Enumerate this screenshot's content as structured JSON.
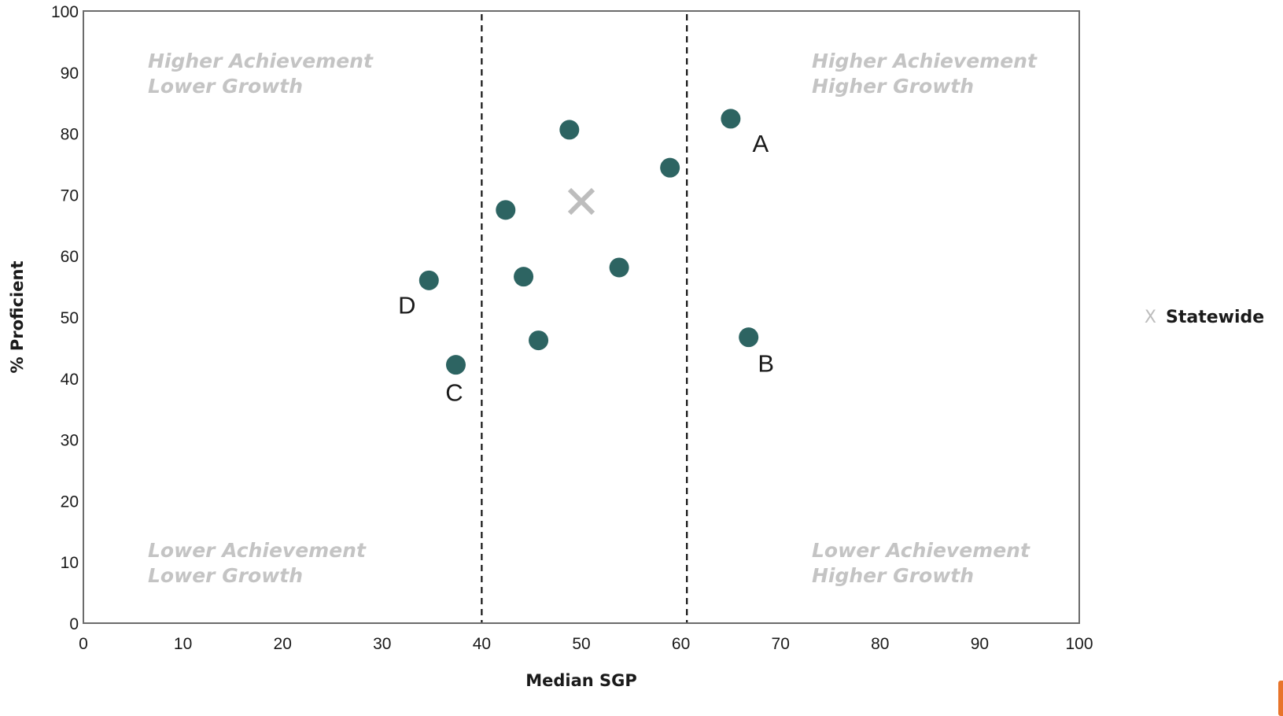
{
  "chart_data": {
    "type": "scatter",
    "title": "",
    "xlabel": "Median SGP",
    "ylabel": "% Proficient",
    "xlim": [
      0,
      100
    ],
    "ylim": [
      0,
      100
    ],
    "x_ticks": [
      0,
      10,
      20,
      30,
      40,
      50,
      60,
      70,
      80,
      90,
      100
    ],
    "y_ticks": [
      0,
      10,
      20,
      30,
      40,
      50,
      60,
      70,
      80,
      90,
      100
    ],
    "grid": false,
    "reference_lines_x": [
      40,
      60.6
    ],
    "reference_line_style": "dashed",
    "quadrants": [
      {
        "line1": "Higher Achievement",
        "line2": "Lower Growth",
        "position": "top-left"
      },
      {
        "line1": "Higher Achievement",
        "line2": "Higher Growth",
        "position": "top-right"
      },
      {
        "line1": "Lower Achievement",
        "line2": "Lower Growth",
        "position": "bottom-left"
      },
      {
        "line1": "Lower Achievement",
        "line2": "Higher Growth",
        "position": "bottom-right"
      }
    ],
    "points": [
      {
        "x": 65.0,
        "y": 82.4,
        "label": "A"
      },
      {
        "x": 66.8,
        "y": 46.7,
        "label": "B"
      },
      {
        "x": 37.4,
        "y": 42.2,
        "label": "C"
      },
      {
        "x": 34.7,
        "y": 56.0,
        "label": "D"
      },
      {
        "x": 48.8,
        "y": 80.6,
        "label": ""
      },
      {
        "x": 58.9,
        "y": 74.4,
        "label": ""
      },
      {
        "x": 42.4,
        "y": 67.5,
        "label": ""
      },
      {
        "x": 44.2,
        "y": 56.6,
        "label": ""
      },
      {
        "x": 53.8,
        "y": 58.1,
        "label": ""
      },
      {
        "x": 45.7,
        "y": 46.2,
        "label": ""
      }
    ],
    "statewide": {
      "x": 50.0,
      "y": 68.9
    },
    "point_color": "#2d6462",
    "statewide_color": "#bdbdbd",
    "legend": {
      "label": "Statewide",
      "marker": "X",
      "position": "right"
    }
  }
}
